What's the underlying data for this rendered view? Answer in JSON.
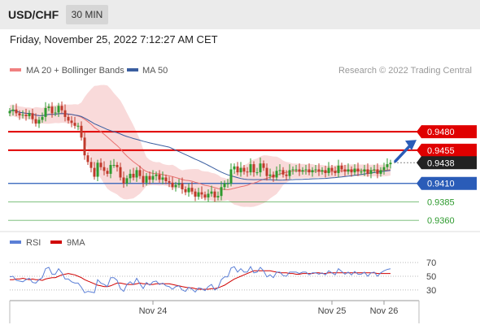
{
  "header": {
    "symbol": "USD/CHF",
    "timeframe": "30 MIN"
  },
  "datetime": "Friday, November 25, 2022 7:12:27 AM CET",
  "colors": {
    "ma20": "#e87070",
    "ma50": "#3a5ea0",
    "bands": "#f7caca",
    "resistance": "#e00000",
    "pivot": "#2a5cb8",
    "support": "#2e9a2e",
    "up": "#2e9a2e",
    "down": "#c0392b",
    "rsi": "#5b7fd6",
    "rsi_ma": "#d00000",
    "arrow": "#2a5cb8"
  },
  "chart_data": [
    {
      "type": "candlestick",
      "title": "",
      "legend": [
        {
          "name": "MA 20 + Bollinger Bands",
          "color": "#f08080"
        },
        {
          "name": "MA 50",
          "color": "#3a5ea0"
        }
      ],
      "watermark": "Research © 2022 Trading Central",
      "x_tick_labels": [
        "Nov 24",
        "Nov 25",
        "Nov 26"
      ],
      "y_range": [
        0.9347,
        0.9545
      ],
      "price_levels": [
        {
          "label": "0.9480",
          "value": 0.948,
          "kind": "resistance"
        },
        {
          "label": "0.9455",
          "value": 0.9455,
          "kind": "resistance"
        },
        {
          "label": "0.9438",
          "value": 0.9438,
          "kind": "last"
        },
        {
          "label": "0.9410",
          "value": 0.941,
          "kind": "pivot"
        },
        {
          "label": "0.9385",
          "value": 0.9385,
          "kind": "support"
        },
        {
          "label": "0.9360",
          "value": 0.936,
          "kind": "support"
        }
      ],
      "target_arrow": {
        "from": 0.944,
        "to": 0.947
      },
      "close": [
        0.9508,
        0.951,
        0.9505,
        0.9502,
        0.9503,
        0.9501,
        0.9505,
        0.9497,
        0.9491,
        0.9496,
        0.95,
        0.9512,
        0.9514,
        0.9505,
        0.9506,
        0.9515,
        0.9509,
        0.95,
        0.9495,
        0.9492,
        0.9488,
        0.9488,
        0.9472,
        0.9448,
        0.9439,
        0.9431,
        0.9419,
        0.9438,
        0.9432,
        0.9427,
        0.9423,
        0.9435,
        0.9435,
        0.9432,
        0.9418,
        0.941,
        0.9417,
        0.9423,
        0.9418,
        0.9428,
        0.942,
        0.9411,
        0.942,
        0.9415,
        0.942,
        0.9422,
        0.9415,
        0.9418,
        0.9413,
        0.9411,
        0.9405,
        0.9408,
        0.941,
        0.9402,
        0.9398,
        0.9404,
        0.9399,
        0.9392,
        0.9398,
        0.9395,
        0.9391,
        0.9396,
        0.9399,
        0.9391,
        0.9393,
        0.9405,
        0.941,
        0.941,
        0.9429,
        0.9433,
        0.9425,
        0.9431,
        0.9426,
        0.9425,
        0.9436,
        0.9425,
        0.9425,
        0.9437,
        0.9431,
        0.942,
        0.9422,
        0.9418,
        0.9427,
        0.9428,
        0.9422,
        0.942,
        0.9428,
        0.9429,
        0.9429,
        0.9426,
        0.9428,
        0.9429,
        0.9425,
        0.9428,
        0.9429,
        0.9426,
        0.9428,
        0.9424,
        0.9431,
        0.9427,
        0.9424,
        0.9434,
        0.9429,
        0.9426,
        0.9429,
        0.9425,
        0.943,
        0.9426,
        0.9426,
        0.9429,
        0.9423,
        0.9428,
        0.9429,
        0.9423,
        0.9428,
        0.9432,
        0.9436,
        0.9438
      ]
    },
    {
      "type": "line",
      "title": "",
      "legend": [
        {
          "name": "RSI",
          "color": "#5b7fd6"
        },
        {
          "name": "9MA",
          "color": "#d00000"
        }
      ],
      "y_ticks": [
        70,
        50,
        30
      ],
      "y_range": [
        18,
        82
      ],
      "rsi": [
        49,
        50,
        44,
        43,
        42,
        45,
        47,
        41,
        40,
        45,
        48,
        61,
        63,
        53,
        53,
        61,
        55,
        46,
        46,
        42,
        40,
        40,
        34,
        26,
        28,
        27,
        26,
        45,
        40,
        38,
        35,
        48,
        48,
        44,
        32,
        28,
        38,
        42,
        38,
        47,
        39,
        32,
        41,
        37,
        42,
        43,
        38,
        40,
        36,
        35,
        31,
        35,
        36,
        30,
        28,
        34,
        31,
        27,
        33,
        32,
        29,
        35,
        38,
        30,
        33,
        45,
        49,
        49,
        62,
        64,
        56,
        61,
        56,
        56,
        64,
        55,
        56,
        63,
        58,
        49,
        52,
        48,
        56,
        56,
        51,
        50,
        56,
        56,
        56,
        54,
        56,
        56,
        52,
        55,
        55,
        53,
        55,
        52,
        58,
        55,
        52,
        61,
        57,
        53,
        56,
        52,
        57,
        53,
        53,
        56,
        50,
        55,
        56,
        50,
        55,
        58,
        60,
        61
      ],
      "rsi_ma": [
        45,
        45,
        46,
        46,
        47,
        46,
        45,
        46,
        45,
        45,
        44,
        46,
        47,
        48,
        48,
        50,
        52,
        53,
        54,
        53,
        52,
        50,
        48,
        45,
        43,
        41,
        39,
        37,
        36,
        35,
        35,
        36,
        38,
        40,
        40,
        39,
        38,
        38,
        38,
        39,
        40,
        39,
        39,
        38,
        38,
        39,
        39,
        39,
        39,
        39,
        38,
        37,
        36,
        35,
        34,
        33,
        33,
        32,
        31,
        31,
        31,
        31,
        32,
        32,
        33,
        35,
        37,
        40,
        43,
        46,
        48,
        50,
        52,
        54,
        56,
        58,
        58,
        58,
        58,
        58,
        58,
        57,
        56,
        55,
        55,
        55,
        54,
        54,
        53,
        53,
        54,
        54,
        54,
        54,
        55,
        55,
        54,
        54,
        55,
        55,
        55,
        55,
        55,
        55,
        55,
        55,
        55,
        55,
        55,
        55,
        55,
        55,
        55,
        54,
        54,
        54,
        54,
        54
      ]
    }
  ]
}
